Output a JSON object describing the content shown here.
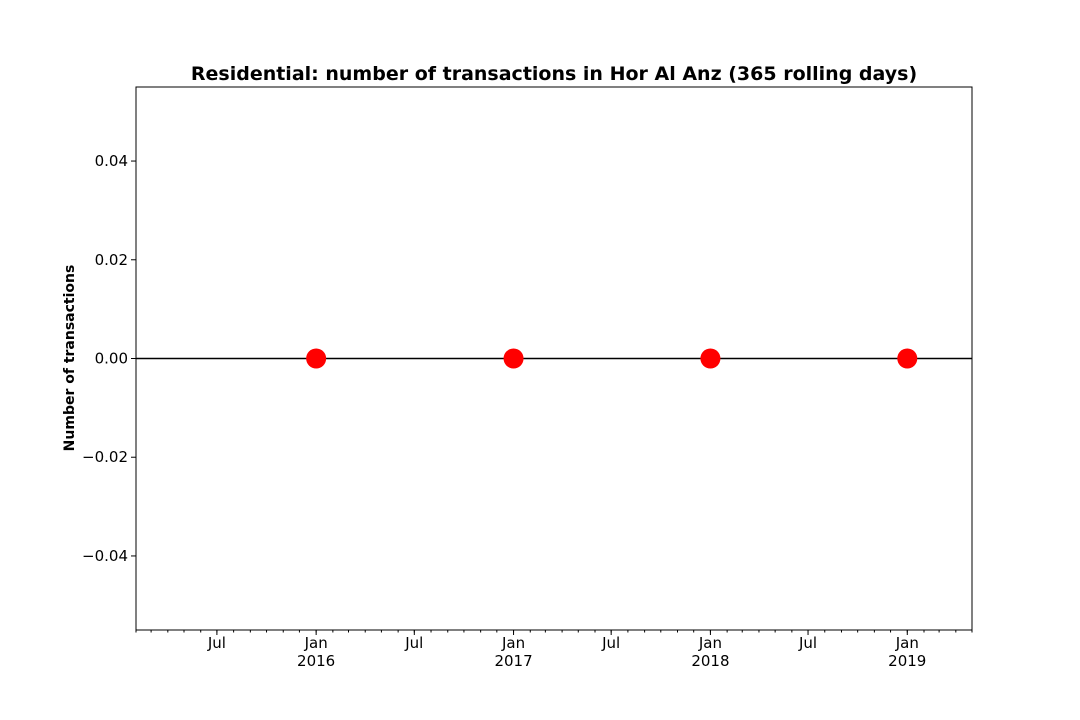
{
  "chart_data": {
    "type": "line",
    "title": "Residential: number of transactions in Hor Al Anz (365 rolling days)",
    "xlabel": "",
    "ylabel": "Number of transactions",
    "xlim": [
      "2015-02-01",
      "2019-05-01"
    ],
    "ylim": [
      -0.055,
      0.055
    ],
    "yticks": [
      {
        "value": 0.04,
        "label": "0.04"
      },
      {
        "value": 0.02,
        "label": "0.02"
      },
      {
        "value": 0.0,
        "label": "0.00"
      },
      {
        "value": -0.02,
        "label": "−0.02"
      },
      {
        "value": -0.04,
        "label": "−0.04"
      }
    ],
    "xticks_major": [
      {
        "date": "2015-07-01",
        "label": "Jul"
      },
      {
        "date": "2016-01-01",
        "label": "Jan\n2016"
      },
      {
        "date": "2016-07-01",
        "label": "Jul"
      },
      {
        "date": "2017-01-01",
        "label": "Jan\n2017"
      },
      {
        "date": "2017-07-01",
        "label": "Jul"
      },
      {
        "date": "2018-01-01",
        "label": "Jan\n2018"
      },
      {
        "date": "2018-07-01",
        "label": "Jul"
      },
      {
        "date": "2019-01-01",
        "label": "Jan\n2019"
      }
    ],
    "series": [
      {
        "line_color": "#000000",
        "marker_color": "#ff0000",
        "points": [
          {
            "x": "2016-01-01",
            "y": 0
          },
          {
            "x": "2017-01-01",
            "y": 0
          },
          {
            "x": "2018-01-01",
            "y": 0
          },
          {
            "x": "2019-01-01",
            "y": 0
          }
        ]
      }
    ],
    "grid": false,
    "legend": "none"
  }
}
